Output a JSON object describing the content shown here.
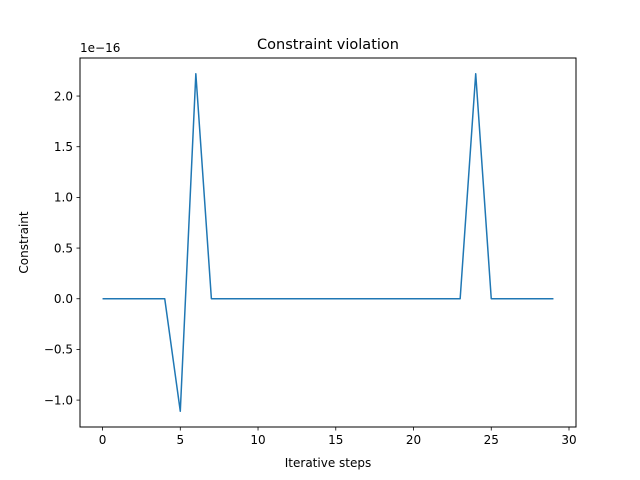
{
  "chart_data": {
    "type": "line",
    "title": "Constraint violation",
    "xlabel": "Iterative steps",
    "ylabel": "Constraint",
    "y_offset_label": "1e−16",
    "xlim": [
      -1.45,
      30.45
    ],
    "ylim": [
      -1.2654,
      2.3754
    ],
    "x_ticks": [
      0,
      5,
      10,
      15,
      20,
      25,
      30
    ],
    "y_ticks": [
      -1.0,
      -0.5,
      0.0,
      0.5,
      1.0,
      1.5,
      2.0
    ],
    "y_tick_labels": [
      "−1.0",
      "−0.5",
      "0.0",
      "0.5",
      "1.0",
      "1.5",
      "2.0"
    ],
    "grid": false,
    "series": [
      {
        "color": "#1f77b4",
        "x": [
          0,
          1,
          2,
          3,
          4,
          5,
          6,
          7,
          8,
          9,
          10,
          11,
          12,
          13,
          14,
          15,
          16,
          17,
          18,
          19,
          20,
          21,
          22,
          23,
          24,
          25,
          26,
          27,
          28,
          29
        ],
        "y": [
          0,
          0,
          0,
          0,
          0,
          -1.11,
          2.22,
          0,
          0,
          0,
          0,
          0,
          0,
          0,
          0,
          0,
          0,
          0,
          0,
          0,
          0,
          0,
          0,
          0,
          2.22,
          0,
          0,
          0,
          0,
          0
        ]
      }
    ]
  }
}
